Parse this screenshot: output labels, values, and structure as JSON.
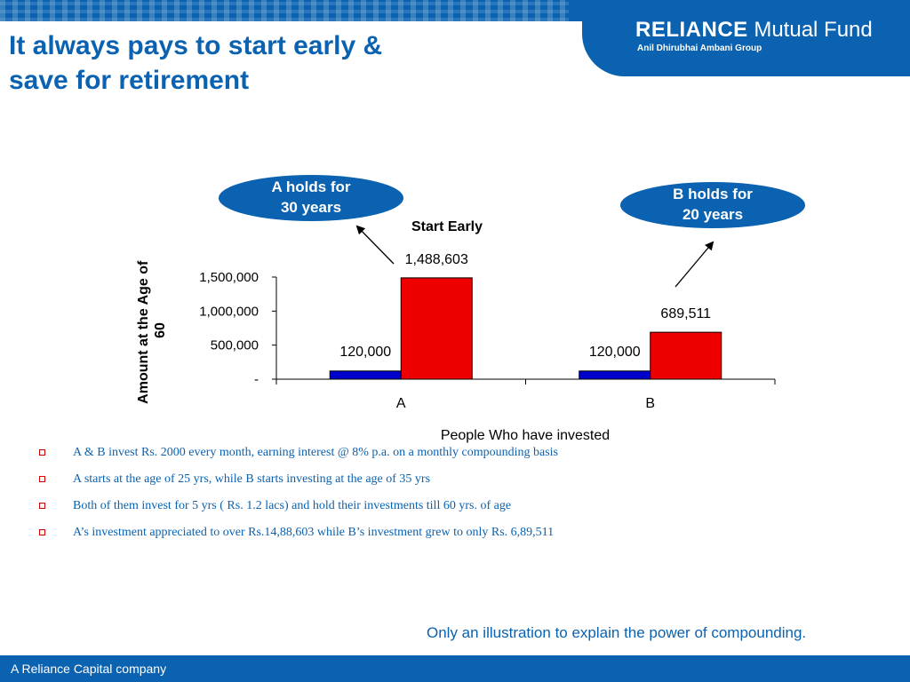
{
  "header": {
    "brand": "RELIANCE",
    "product": "Mutual Fund",
    "group": "Anil Dhirubhai Ambani Group"
  },
  "slide": {
    "title_line1": "It always pays to start early &",
    "title_line2": "save for retirement"
  },
  "callouts": {
    "a_line1": "A holds for",
    "a_line2": "30 years",
    "b_line1": "B holds for",
    "b_line2": "20 years"
  },
  "chart_data": {
    "type": "bar",
    "title": "Start Early",
    "xlabel": "People Who have invested",
    "ylabel": "Amount at the Age of 60",
    "categories": [
      "A",
      "B"
    ],
    "series": [
      {
        "color": "#0000cc",
        "values": [
          120000,
          120000
        ],
        "labels": [
          "120,000",
          "120,000"
        ]
      },
      {
        "color": "#ee0000",
        "values": [
          1488603,
          689511
        ],
        "labels": [
          "1,488,603",
          "689,511"
        ]
      }
    ],
    "ylim": [
      0,
      1500000
    ],
    "yticks": [
      0,
      500000,
      1000000,
      1500000
    ],
    "ytick_labels": [
      "-",
      "500,000",
      "1,000,000",
      "1,500,000"
    ],
    "grid": false,
    "legend": "none"
  },
  "bullets": [
    "A & B invest Rs. 2000 every month, earning interest @ 8% p.a. on a monthly compounding basis",
    "A starts at the age of 25 yrs, while B starts investing at the age of 35 yrs",
    "Both of them invest for 5  yrs ( Rs. 1.2 lacs) and hold their investments till 60 yrs. of age",
    "A’s investment appreciated to over Rs.14,88,603 while B’s investment grew to only Rs. 6,89,511"
  ],
  "footnote": "Only an illustration to explain the power of compounding.",
  "footer": {
    "company": "A Reliance Capital company"
  },
  "colors": {
    "brand_blue": "#0a62b0",
    "bullet_red": "#d00000"
  }
}
